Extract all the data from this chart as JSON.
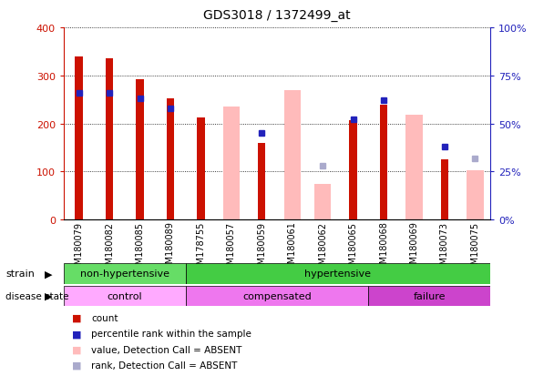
{
  "title": "GDS3018 / 1372499_at",
  "samples": [
    "GSM180079",
    "GSM180082",
    "GSM180085",
    "GSM180089",
    "GSM178755",
    "GSM180057",
    "GSM180059",
    "GSM180061",
    "GSM180062",
    "GSM180065",
    "GSM180068",
    "GSM180069",
    "GSM180073",
    "GSM180075"
  ],
  "count": [
    340,
    335,
    293,
    252,
    213,
    null,
    160,
    null,
    null,
    207,
    240,
    null,
    125,
    null
  ],
  "percentile_rank": [
    66,
    66,
    63,
    58,
    null,
    null,
    45,
    null,
    null,
    52,
    62,
    null,
    38,
    null
  ],
  "value_absent": [
    null,
    null,
    null,
    null,
    null,
    235,
    null,
    270,
    75,
    null,
    null,
    218,
    null,
    102
  ],
  "rank_absent": [
    null,
    null,
    null,
    null,
    null,
    null,
    null,
    null,
    28,
    null,
    null,
    null,
    null,
    32
  ],
  "strain_groups": [
    {
      "label": "non-hypertensive",
      "start": 0,
      "end": 4,
      "color": "#66dd66"
    },
    {
      "label": "hypertensive",
      "start": 4,
      "end": 14,
      "color": "#44cc44"
    }
  ],
  "disease_groups": [
    {
      "label": "control",
      "start": 0,
      "end": 4,
      "color": "#ffaaff"
    },
    {
      "label": "compensated",
      "start": 4,
      "end": 10,
      "color": "#ee77ee"
    },
    {
      "label": "failure",
      "start": 10,
      "end": 14,
      "color": "#cc44cc"
    }
  ],
  "ylim_left": [
    0,
    400
  ],
  "ylim_right": [
    0,
    100
  ],
  "yticks_left": [
    0,
    100,
    200,
    300,
    400
  ],
  "yticks_right": [
    0,
    25,
    50,
    75,
    100
  ],
  "ytick_right_labels": [
    "0%",
    "25%",
    "50%",
    "75%",
    "100%"
  ],
  "bar_color_count": "#cc1100",
  "bar_color_absent": "#ffbbbb",
  "dot_color_present": "#2222bb",
  "dot_color_absent": "#aaaacc",
  "axis_left_color": "#cc1100",
  "axis_right_color": "#2222bb",
  "background_color": "#ffffff",
  "legend_items": [
    {
      "color": "#cc1100",
      "label": "count"
    },
    {
      "color": "#2222bb",
      "label": "percentile rank within the sample"
    },
    {
      "color": "#ffbbbb",
      "label": "value, Detection Call = ABSENT"
    },
    {
      "color": "#aaaacc",
      "label": "rank, Detection Call = ABSENT"
    }
  ]
}
